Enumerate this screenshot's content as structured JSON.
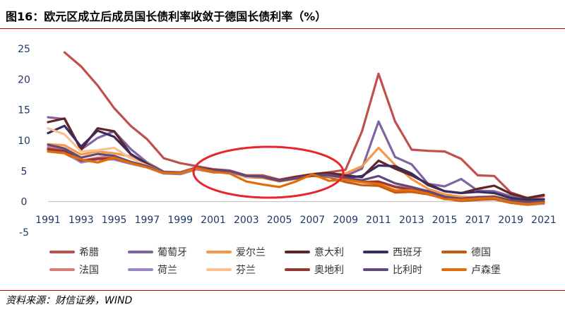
{
  "title": "图16：欧元区成立后成员国长债利率收敛于德国长债利率（%）",
  "source": "资料来源：财信证券，WIND",
  "chart_data": {
    "type": "line",
    "title": "图16：欧元区成立后成员国长债利率收敛于德国长债利率（%）",
    "xlabel": "",
    "ylabel": "",
    "ylim": [
      -5,
      25
    ],
    "yticks": [
      "25",
      "20",
      "15",
      "10",
      "5",
      "0",
      "-5"
    ],
    "xticks": [
      "1991",
      "1993",
      "1995",
      "1997",
      "1999",
      "2001",
      "2003",
      "2005",
      "2007",
      "2009",
      "2011",
      "2013",
      "2015",
      "2017",
      "2019",
      "2021"
    ],
    "x": [
      1991,
      1992,
      1993,
      1994,
      1995,
      1996,
      1997,
      1998,
      1999,
      2000,
      2001,
      2002,
      2003,
      2004,
      2005,
      2006,
      2007,
      2008,
      2009,
      2010,
      2011,
      2012,
      2013,
      2014,
      2015,
      2016,
      2017,
      2018,
      2019,
      2020,
      2021
    ],
    "grid": false,
    "legend_position": "bottom",
    "annotation": "red ellipse highlighting convergence 2000-2008",
    "series": [
      {
        "name": "希腊",
        "color": "#c0504d",
        "values": [
          null,
          24.4,
          22.1,
          19.0,
          15.3,
          12.4,
          10.2,
          7.1,
          6.3,
          5.8,
          5.3,
          5.1,
          4.3,
          4.3,
          3.6,
          4.1,
          4.5,
          4.8,
          5.2,
          11.5,
          20.9,
          13.1,
          8.5,
          8.3,
          8.2,
          7.0,
          4.3,
          4.2,
          1.5,
          0.6,
          0.9
        ]
      },
      {
        "name": "葡萄牙",
        "color": "#8064a2",
        "values": [
          13.8,
          13.5,
          8.5,
          10.4,
          11.5,
          8.6,
          6.4,
          4.9,
          4.8,
          5.6,
          5.2,
          5.0,
          4.2,
          4.1,
          3.4,
          3.9,
          4.4,
          4.5,
          4.2,
          5.4,
          13.1,
          7.3,
          6.1,
          2.9,
          2.5,
          3.7,
          1.8,
          1.7,
          0.9,
          0.4,
          0.4
        ]
      },
      {
        "name": "爱尔兰",
        "color": "#f79646",
        "values": [
          9.4,
          9.2,
          7.7,
          8.2,
          7.9,
          7.4,
          6.3,
          4.8,
          4.7,
          5.5,
          5.0,
          4.9,
          4.0,
          3.9,
          3.3,
          3.7,
          4.3,
          4.4,
          4.6,
          5.8,
          8.8,
          6.0,
          3.7,
          2.1,
          1.2,
          0.8,
          0.7,
          0.9,
          0.3,
          -0.1,
          0.3
        ]
      },
      {
        "name": "意大利",
        "color": "#632523",
        "values": [
          13.0,
          13.6,
          8.5,
          12.0,
          11.5,
          7.8,
          6.2,
          4.8,
          4.7,
          5.6,
          5.2,
          5.0,
          4.2,
          4.1,
          3.5,
          4.0,
          4.5,
          4.7,
          4.3,
          4.0,
          6.7,
          5.4,
          4.3,
          2.9,
          1.7,
          1.4,
          2.1,
          2.6,
          1.3,
          0.6,
          1.1
        ]
      },
      {
        "name": "西班牙",
        "color": "#3a2c5f",
        "values": [
          11.2,
          12.4,
          9.0,
          11.6,
          10.6,
          7.8,
          6.1,
          4.8,
          4.7,
          5.5,
          5.1,
          5.0,
          4.1,
          4.0,
          3.4,
          3.8,
          4.3,
          4.4,
          3.9,
          4.2,
          5.9,
          5.8,
          4.6,
          2.7,
          1.7,
          1.4,
          1.6,
          1.4,
          0.6,
          0.3,
          0.4
        ]
      },
      {
        "name": "德国",
        "color": "#c55a11",
        "values": [
          8.5,
          7.9,
          6.5,
          7.0,
          6.9,
          6.2,
          5.6,
          4.6,
          4.5,
          5.3,
          4.8,
          4.8,
          4.1,
          4.0,
          3.4,
          3.8,
          4.2,
          4.0,
          3.2,
          2.7,
          2.6,
          1.5,
          1.6,
          1.2,
          0.5,
          0.1,
          0.3,
          0.4,
          -0.2,
          -0.5,
          -0.3
        ]
      },
      {
        "name": "法国",
        "color": "#d87f7c",
        "values": [
          8.9,
          8.5,
          6.7,
          7.2,
          7.5,
          6.3,
          5.6,
          4.6,
          4.6,
          5.4,
          4.9,
          4.9,
          4.1,
          4.1,
          3.4,
          3.8,
          4.3,
          4.2,
          3.6,
          3.1,
          3.3,
          2.5,
          2.2,
          1.7,
          0.8,
          0.5,
          0.8,
          0.8,
          0.1,
          -0.2,
          0.0
        ]
      },
      {
        "name": "荷兰",
        "color": "#9b85c2",
        "values": [
          8.7,
          8.1,
          6.4,
          6.9,
          6.9,
          6.2,
          5.6,
          4.6,
          4.6,
          5.4,
          5.0,
          4.9,
          4.1,
          4.1,
          3.4,
          3.8,
          4.3,
          4.2,
          3.7,
          3.0,
          3.0,
          1.9,
          2.0,
          1.5,
          0.7,
          0.3,
          0.5,
          0.6,
          -0.1,
          -0.4,
          -0.3
        ]
      },
      {
        "name": "芬兰",
        "color": "#fac090",
        "values": [
          12.0,
          11.0,
          8.2,
          8.4,
          8.8,
          7.1,
          5.9,
          4.8,
          4.7,
          5.5,
          5.0,
          5.0,
          4.1,
          4.1,
          3.4,
          3.8,
          4.3,
          4.3,
          3.7,
          3.0,
          3.0,
          1.9,
          1.9,
          1.4,
          0.7,
          0.4,
          0.6,
          0.7,
          0.1,
          -0.2,
          -0.1
        ]
      },
      {
        "name": "奥地利",
        "color": "#953734",
        "values": [
          8.6,
          8.3,
          6.7,
          7.0,
          7.1,
          6.3,
          5.7,
          4.7,
          4.7,
          5.6,
          5.1,
          5.0,
          4.2,
          4.1,
          3.4,
          3.8,
          4.3,
          4.3,
          3.9,
          3.2,
          3.3,
          2.4,
          2.0,
          1.5,
          0.7,
          0.4,
          0.6,
          0.7,
          0.1,
          -0.2,
          0.0
        ]
      },
      {
        "name": "比利时",
        "color": "#604a7b",
        "values": [
          9.3,
          8.7,
          7.2,
          7.8,
          7.5,
          6.5,
          5.8,
          4.8,
          4.8,
          5.6,
          5.1,
          5.0,
          4.2,
          4.1,
          3.4,
          3.8,
          4.3,
          4.4,
          3.9,
          3.5,
          4.2,
          3.0,
          2.4,
          1.7,
          0.8,
          0.5,
          0.7,
          0.8,
          0.2,
          -0.1,
          0.0
        ]
      },
      {
        "name": "卢森堡",
        "color": "#e36c09",
        "values": [
          8.2,
          7.9,
          6.9,
          6.4,
          7.2,
          6.3,
          5.6,
          4.7,
          4.7,
          5.5,
          4.9,
          4.6,
          3.3,
          2.8,
          2.4,
          3.3,
          4.5,
          3.4,
          3.6,
          3.2,
          2.9,
          1.8,
          1.9,
          1.3,
          0.4,
          0.3,
          0.5,
          0.6,
          -0.1,
          -0.4,
          -0.2
        ]
      }
    ]
  }
}
